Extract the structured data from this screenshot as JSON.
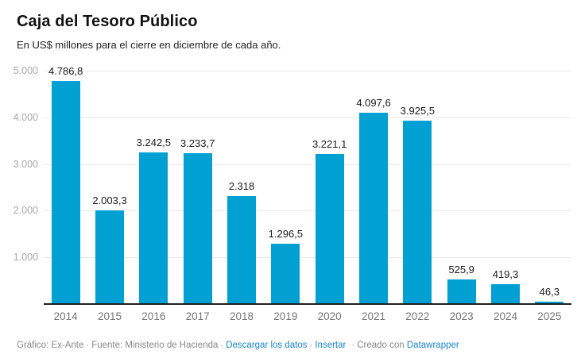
{
  "header": {
    "title": "Caja del Tesoro Público",
    "subtitle": "En US$ millones para el cierre en diciembre de cada año."
  },
  "chart_data": {
    "type": "bar",
    "title": "Caja del Tesoro Público",
    "subtitle": "En US$ millones para el cierre en diciembre de cada año.",
    "categories": [
      "2014",
      "2015",
      "2016",
      "2017",
      "2018",
      "2019",
      "2020",
      "2021",
      "2022",
      "2023",
      "2024",
      "2025"
    ],
    "values": [
      4786.8,
      2003.3,
      3242.5,
      3233.7,
      2318,
      1296.5,
      3221.1,
      4097.6,
      3925.5,
      525.9,
      419.3,
      46.3
    ],
    "value_labels": [
      "4.786,8",
      "2.003,3",
      "3.242,5",
      "3.233,7",
      "2.318",
      "1.296,5",
      "3.221,1",
      "4.097,6",
      "3.925,5",
      "525,9",
      "419,3",
      "46,3"
    ],
    "xlabel": "",
    "ylabel": "",
    "ylim": [
      0,
      5000
    ],
    "yticks": [
      {
        "value": 1000,
        "label": "1.000"
      },
      {
        "value": 2000,
        "label": "2.000"
      },
      {
        "value": 3000,
        "label": "3.000"
      },
      {
        "value": 4000,
        "label": "4.000"
      },
      {
        "value": 5000,
        "label": "5.000"
      }
    ],
    "grid": true,
    "legend": false
  },
  "colors": {
    "bar": "#00a0d2",
    "grid": "#e8e8e8",
    "baseline": "#1f1f1f",
    "y_tick": "#a8a8a8",
    "x_tick": "#757575",
    "value_label": "#1a1a1a",
    "link": "#1a85c8",
    "footer_text": "#888888"
  },
  "footer": {
    "byline": "Gráfico: Ex-Ante",
    "source": "Fuente: Ministerio de Hacienda",
    "separator": "·",
    "download_label": "Descargar los datos",
    "embed_label": "Insertar",
    "created_with": "Creado con",
    "tool_name": "Datawrapper"
  }
}
